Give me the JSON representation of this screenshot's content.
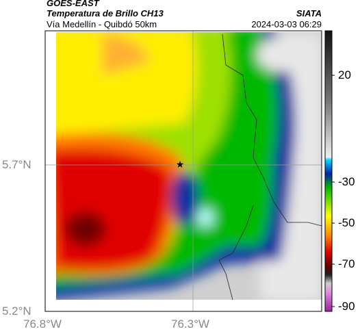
{
  "header": {
    "title": "GOES-EAST",
    "subtitle": "Temperatura de Brillo CH13",
    "location": "Vía Medellín - Quibdó 50km",
    "source": "SIATA",
    "datetime": "2024-03-03 06:29"
  },
  "axes": {
    "x_ticks": [
      "76.8°W",
      "76.3°W"
    ],
    "y_ticks": [
      "5.7°N",
      "5.2°N"
    ]
  },
  "colorbar": {
    "ticks": [
      "20",
      "-30",
      "-50",
      "-70",
      "-90"
    ]
  }
}
